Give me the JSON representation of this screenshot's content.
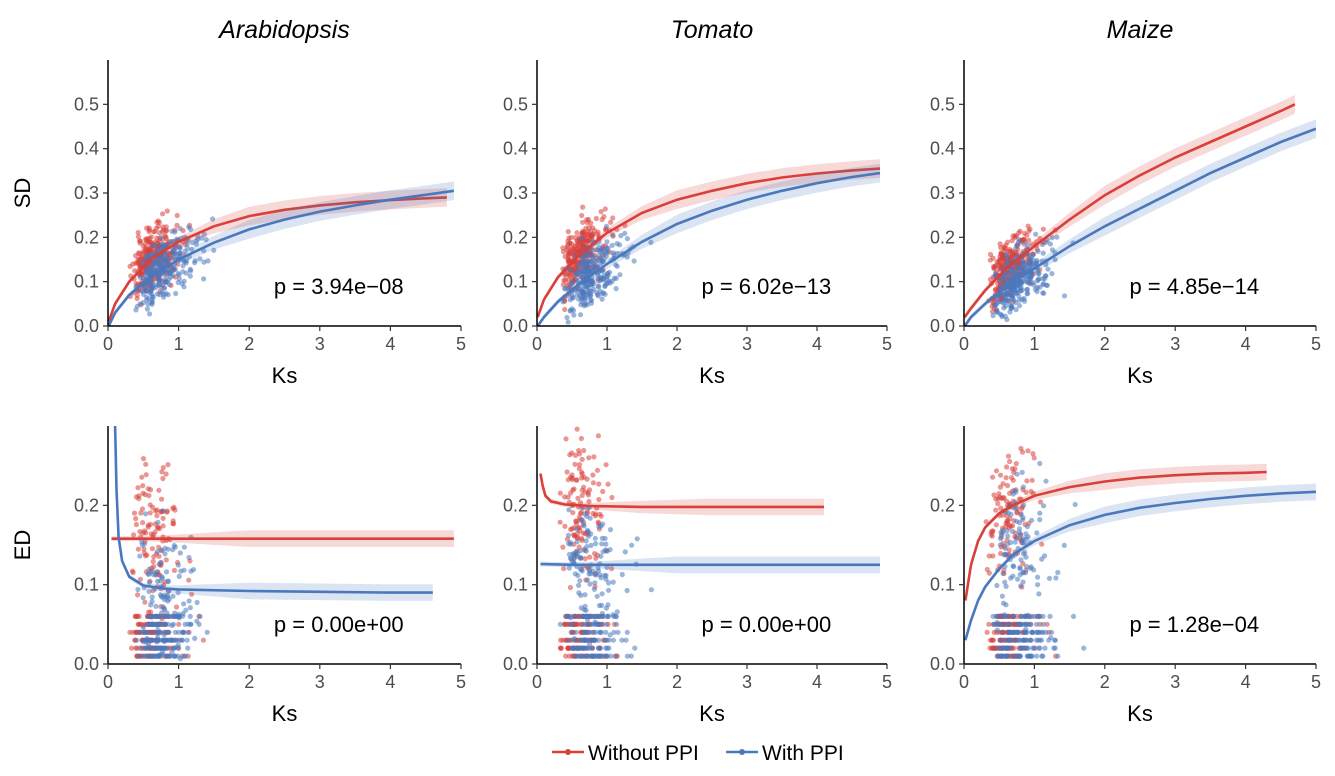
{
  "legend": {
    "entries": [
      {
        "name": "Without PPI",
        "color": "#d9403a"
      },
      {
        "name": "With PPI",
        "color": "#4a78bd"
      }
    ],
    "position": "bottom"
  },
  "chart_data": [
    {
      "type": "scatter",
      "panel": "Arabidopsis-SD",
      "title": "Arabidopsis",
      "xlabel": "Ks",
      "ylabel": "SD",
      "xlim": [
        0,
        5
      ],
      "ylim": [
        0,
        0.6
      ],
      "xticks": [
        "0",
        "1",
        "2",
        "3",
        "4",
        "5"
      ],
      "yticks": [
        "0.0",
        "0.1",
        "0.2",
        "0.3",
        "0.4",
        "0.5"
      ],
      "annotation": "p = 3.94e−08",
      "series": [
        {
          "name": "Without PPI",
          "fit_x": [
            0.01,
            0.1,
            0.3,
            0.6,
            1,
            1.5,
            2,
            2.5,
            3,
            3.5,
            4,
            4.5,
            4.8
          ],
          "fit_y": [
            0.01,
            0.05,
            0.1,
            0.15,
            0.19,
            0.225,
            0.248,
            0.262,
            0.272,
            0.279,
            0.284,
            0.288,
            0.29
          ]
        },
        {
          "name": "With PPI",
          "fit_x": [
            0.01,
            0.1,
            0.3,
            0.6,
            1,
            1.5,
            2,
            2.5,
            3,
            3.5,
            4,
            4.5,
            4.9
          ],
          "fit_y": [
            0.0,
            0.03,
            0.07,
            0.11,
            0.15,
            0.188,
            0.218,
            0.24,
            0.258,
            0.272,
            0.285,
            0.296,
            0.305
          ]
        }
      ]
    },
    {
      "type": "scatter",
      "panel": "Tomato-SD",
      "title": "Tomato",
      "xlabel": "Ks",
      "ylabel": "",
      "xlim": [
        0,
        5
      ],
      "ylim": [
        0,
        0.6
      ],
      "xticks": [
        "0",
        "1",
        "2",
        "3",
        "4",
        "5"
      ],
      "yticks": [
        "0.0",
        "0.1",
        "0.2",
        "0.3",
        "0.4",
        "0.5"
      ],
      "annotation": "p = 6.02e−13",
      "series": [
        {
          "name": "Without PPI",
          "fit_x": [
            0.01,
            0.1,
            0.3,
            0.6,
            1,
            1.5,
            2,
            2.5,
            3,
            3.5,
            4,
            4.5,
            4.9
          ],
          "fit_y": [
            0.02,
            0.06,
            0.11,
            0.16,
            0.21,
            0.255,
            0.285,
            0.305,
            0.322,
            0.335,
            0.344,
            0.351,
            0.355
          ]
        },
        {
          "name": "With PPI",
          "fit_x": [
            0.01,
            0.1,
            0.3,
            0.6,
            1,
            1.5,
            2,
            2.5,
            3,
            3.5,
            4,
            4.5,
            4.9
          ],
          "fit_y": [
            0.0,
            0.02,
            0.055,
            0.095,
            0.14,
            0.19,
            0.23,
            0.26,
            0.285,
            0.305,
            0.322,
            0.336,
            0.345
          ]
        }
      ]
    },
    {
      "type": "scatter",
      "panel": "Maize-SD",
      "title": "Maize",
      "xlabel": "Ks",
      "ylabel": "",
      "xlim": [
        0,
        5
      ],
      "ylim": [
        0,
        0.6
      ],
      "xticks": [
        "0",
        "1",
        "2",
        "3",
        "4",
        "5"
      ],
      "yticks": [
        "0.0",
        "0.1",
        "0.2",
        "0.3",
        "0.4",
        "0.5"
      ],
      "annotation": "p = 4.85e−14",
      "series": [
        {
          "name": "Without PPI",
          "fit_x": [
            0.01,
            0.1,
            0.3,
            0.6,
            1,
            1.5,
            2,
            2.5,
            3,
            3.5,
            4,
            4.5,
            4.7
          ],
          "fit_y": [
            0.02,
            0.04,
            0.08,
            0.13,
            0.18,
            0.24,
            0.295,
            0.34,
            0.38,
            0.415,
            0.45,
            0.485,
            0.5
          ]
        },
        {
          "name": "With PPI",
          "fit_x": [
            0.01,
            0.1,
            0.3,
            0.6,
            1,
            1.5,
            2,
            2.5,
            3,
            3.5,
            4,
            4.5,
            5
          ],
          "fit_y": [
            0.0,
            0.02,
            0.05,
            0.09,
            0.13,
            0.18,
            0.225,
            0.265,
            0.305,
            0.345,
            0.38,
            0.415,
            0.445
          ]
        }
      ]
    },
    {
      "type": "scatter",
      "panel": "Arabidopsis-ED",
      "title": "",
      "xlabel": "Ks",
      "ylabel": "ED",
      "xlim": [
        0,
        5
      ],
      "ylim": [
        0,
        0.3
      ],
      "xticks": [
        "0",
        "1",
        "2",
        "3",
        "4",
        "5"
      ],
      "yticks": [
        "0.0",
        "0.1",
        "0.2"
      ],
      "annotation": "p = 0.00e+00",
      "series": [
        {
          "name": "Without PPI",
          "fit_x": [
            0.05,
            0.5,
            1,
            2,
            3,
            4,
            4.9
          ],
          "fit_y": [
            0.158,
            0.158,
            0.158,
            0.158,
            0.158,
            0.158,
            0.158
          ]
        },
        {
          "name": "With PPI",
          "fit_x": [
            0.1,
            0.12,
            0.15,
            0.2,
            0.3,
            0.5,
            0.8,
            1,
            2,
            3,
            4,
            4.6
          ],
          "fit_y": [
            0.3,
            0.22,
            0.16,
            0.13,
            0.11,
            0.099,
            0.095,
            0.094,
            0.092,
            0.091,
            0.09,
            0.09
          ]
        }
      ]
    },
    {
      "type": "scatter",
      "panel": "Tomato-ED",
      "title": "",
      "xlabel": "Ks",
      "ylabel": "",
      "xlim": [
        0,
        5
      ],
      "ylim": [
        0,
        0.3
      ],
      "xticks": [
        "0",
        "1",
        "2",
        "3",
        "4",
        "5"
      ],
      "yticks": [
        "0.0",
        "0.1",
        "0.2"
      ],
      "annotation": "p = 0.00e+00",
      "series": [
        {
          "name": "Without PPI",
          "fit_x": [
            0.05,
            0.08,
            0.12,
            0.2,
            0.4,
            0.8,
            1.5,
            2.5,
            3.5,
            4.1
          ],
          "fit_y": [
            0.24,
            0.225,
            0.212,
            0.205,
            0.201,
            0.199,
            0.198,
            0.198,
            0.198,
            0.198
          ]
        },
        {
          "name": "With PPI",
          "fit_x": [
            0.05,
            0.5,
            1,
            2,
            3,
            4,
            4.9
          ],
          "fit_y": [
            0.126,
            0.125,
            0.125,
            0.125,
            0.125,
            0.125,
            0.125
          ]
        }
      ]
    },
    {
      "type": "scatter",
      "panel": "Maize-ED",
      "title": "",
      "xlabel": "Ks",
      "ylabel": "",
      "xlim": [
        0,
        5
      ],
      "ylim": [
        0,
        0.3
      ],
      "xticks": [
        "0",
        "1",
        "2",
        "3",
        "4",
        "5"
      ],
      "yticks": [
        "0.0",
        "0.1",
        "0.2"
      ],
      "annotation": "p = 1.28e−04",
      "series": [
        {
          "name": "Without PPI",
          "fit_x": [
            0.02,
            0.1,
            0.2,
            0.3,
            0.5,
            0.7,
            1,
            1.5,
            2,
            2.5,
            3,
            3.5,
            4,
            4.3
          ],
          "fit_y": [
            0.08,
            0.125,
            0.155,
            0.172,
            0.19,
            0.2,
            0.212,
            0.223,
            0.23,
            0.235,
            0.238,
            0.24,
            0.241,
            0.242
          ]
        },
        {
          "name": "With PPI",
          "fit_x": [
            0.02,
            0.1,
            0.2,
            0.3,
            0.5,
            0.7,
            1,
            1.5,
            2,
            2.5,
            3,
            3.5,
            4,
            4.5,
            5
          ],
          "fit_y": [
            0.03,
            0.055,
            0.08,
            0.097,
            0.12,
            0.138,
            0.155,
            0.175,
            0.188,
            0.197,
            0.203,
            0.208,
            0.212,
            0.215,
            0.217
          ]
        }
      ]
    }
  ]
}
